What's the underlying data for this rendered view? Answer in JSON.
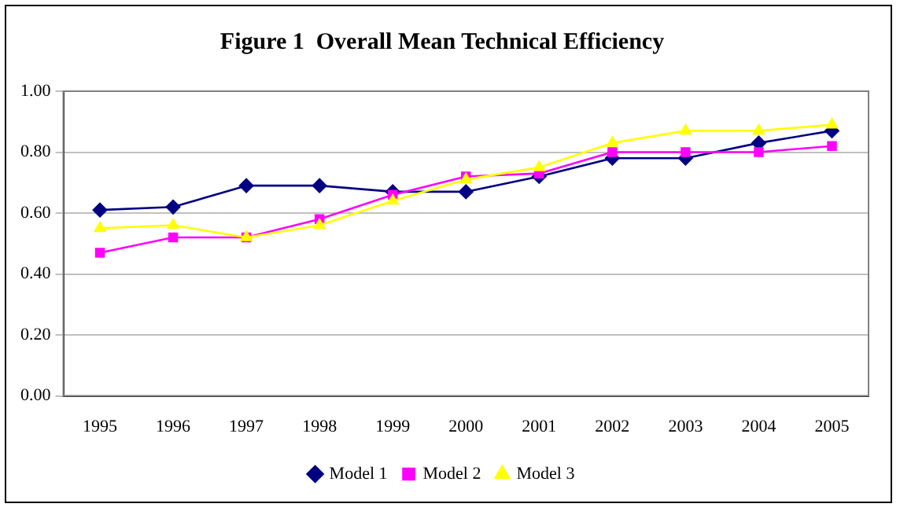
{
  "chart_data": {
    "type": "line",
    "title": "Figure 1  Overall Mean Technical Efficiency",
    "categories": [
      "1995",
      "1996",
      "1997",
      "1998",
      "1999",
      "2000",
      "2001",
      "2002",
      "2003",
      "2004",
      "2005"
    ],
    "series": [
      {
        "name": "Model 1",
        "color": "#000080",
        "marker": "diamond",
        "values": [
          0.61,
          0.62,
          0.69,
          0.69,
          0.67,
          0.67,
          0.72,
          0.78,
          0.78,
          0.83,
          0.87
        ]
      },
      {
        "name": "Model 2",
        "color": "#ff00ff",
        "marker": "square",
        "values": [
          0.47,
          0.52,
          0.52,
          0.58,
          0.66,
          0.72,
          0.73,
          0.8,
          0.8,
          0.8,
          0.82
        ]
      },
      {
        "name": "Model 3",
        "color": "#ffff00",
        "marker": "triangle",
        "values": [
          0.55,
          0.56,
          0.52,
          0.56,
          0.64,
          0.71,
          0.75,
          0.83,
          0.87,
          0.87,
          0.89
        ]
      }
    ],
    "ylim": [
      0,
      1
    ],
    "yticks": [
      {
        "value": 0,
        "label": "0.00"
      },
      {
        "value": 0.2,
        "label": "0.20"
      },
      {
        "value": 0.4,
        "label": "0.40"
      },
      {
        "value": 0.6,
        "label": "0.60"
      },
      {
        "value": 0.8,
        "label": "0.80"
      },
      {
        "value": 1,
        "label": "1.00"
      }
    ],
    "grid": "y",
    "legend": "bottom",
    "line_style": "solid"
  }
}
